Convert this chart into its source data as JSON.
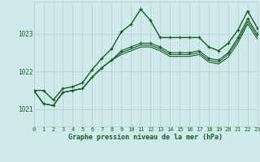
{
  "xlabel": "Graphe pression niveau de la mer (hPa)",
  "background_color": "#ceeaea",
  "grid_color": "#b0d0cc",
  "line_color": "#1a5c28",
  "xlim": [
    0,
    23
  ],
  "ylim": [
    1020.55,
    1023.85
  ],
  "yticks": [
    1021,
    1022,
    1023
  ],
  "xticks": [
    0,
    1,
    2,
    3,
    4,
    5,
    6,
    7,
    8,
    9,
    10,
    11,
    12,
    13,
    14,
    15,
    16,
    17,
    18,
    19,
    20,
    21,
    22,
    23
  ],
  "series": [
    {
      "data": [
        1021.5,
        1021.5,
        1021.25,
        1021.55,
        1021.6,
        1021.7,
        1022.05,
        1022.35,
        1022.6,
        1023.05,
        1023.25,
        1023.65,
        1023.35,
        1022.9,
        1022.9,
        1022.9,
        1022.9,
        1022.9,
        1022.65,
        1022.55,
        1022.75,
        1023.1,
        1023.6,
        1023.15
      ],
      "lw": 1.0,
      "marker": true,
      "zorder": 5
    },
    {
      "data": [
        1021.5,
        1021.15,
        1021.1,
        1021.45,
        1021.5,
        1021.55,
        1021.85,
        1022.1,
        1022.3,
        1022.55,
        1022.65,
        1022.75,
        1022.75,
        1022.65,
        1022.5,
        1022.5,
        1022.5,
        1022.55,
        1022.35,
        1022.3,
        1022.5,
        1022.9,
        1023.4,
        1023.0
      ],
      "lw": 0.8,
      "marker": true,
      "zorder": 4
    },
    {
      "data": [
        1021.5,
        1021.15,
        1021.1,
        1021.45,
        1021.5,
        1021.55,
        1021.85,
        1022.1,
        1022.3,
        1022.5,
        1022.6,
        1022.7,
        1022.7,
        1022.6,
        1022.45,
        1022.45,
        1022.45,
        1022.5,
        1022.3,
        1022.25,
        1022.45,
        1022.83,
        1023.33,
        1022.93
      ],
      "lw": 0.8,
      "marker": false,
      "zorder": 3
    },
    {
      "data": [
        1021.5,
        1021.15,
        1021.1,
        1021.45,
        1021.5,
        1021.55,
        1021.85,
        1022.1,
        1022.3,
        1022.45,
        1022.55,
        1022.65,
        1022.65,
        1022.55,
        1022.4,
        1022.4,
        1022.4,
        1022.45,
        1022.25,
        1022.2,
        1022.38,
        1022.76,
        1023.26,
        1022.86
      ],
      "lw": 0.8,
      "marker": false,
      "zorder": 2
    }
  ]
}
